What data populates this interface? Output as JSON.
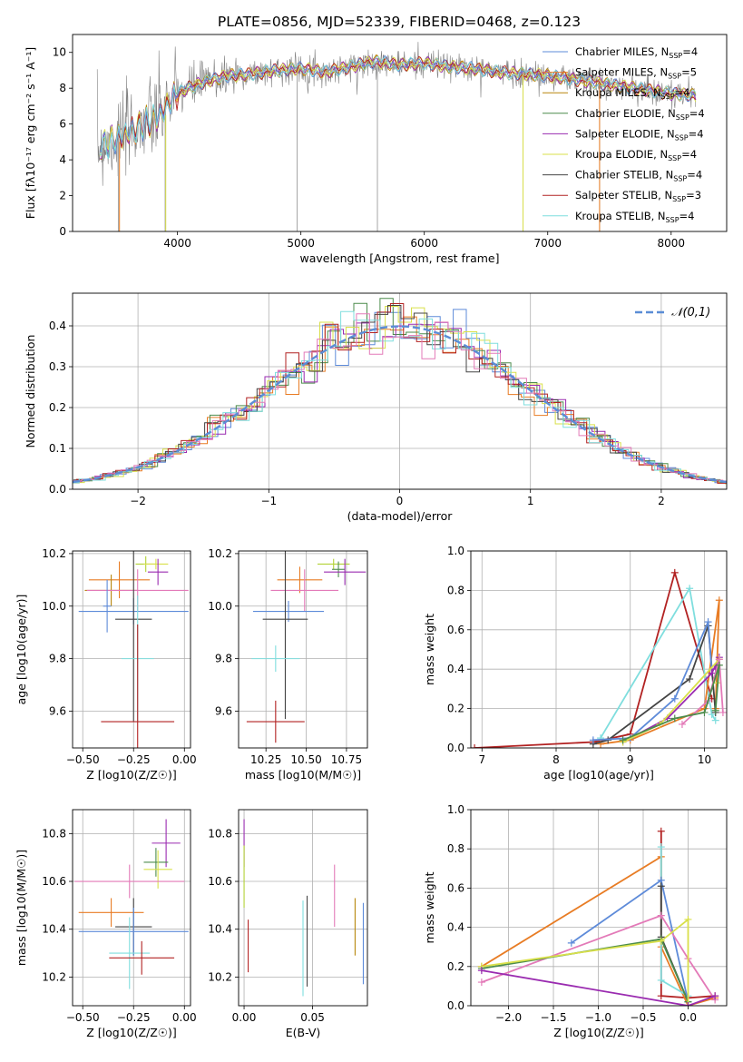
{
  "figure_title": "PLATE=0856, MJD=52339, FIBERID=0468, z=0.123",
  "colors": {
    "chabrier_miles": "#5e8bd9",
    "salpeter_miles": "#e87c24",
    "kroupa_miles": "#b8860b",
    "chabrier_elodie": "#4c8c4c",
    "salpeter_elodie": "#9a2bb0",
    "kroupa_elodie": "#d9e04a",
    "chabrier_stelib": "#444444",
    "salpeter_stelib": "#b22222",
    "kroupa_stelib": "#7fdede",
    "pink": "#e37ab8",
    "lime": "#b2d235",
    "data_gray": "#808080",
    "normal_curve": "#5b8dd6"
  },
  "chart_data": [
    {
      "id": "spectrum",
      "type": "line",
      "title": "PLATE=0856, MJD=52339, FIBERID=0468, z=0.123",
      "xlabel": "wavelength [Angstrom, rest frame]",
      "ylabel": "Flux [fλ10⁻¹⁷ erg cm⁻² s⁻¹ A⁻¹]",
      "xlim": [
        3150,
        8450
      ],
      "ylim": [
        0,
        11
      ],
      "xticks": [
        "4000",
        "5000",
        "6000",
        "7000",
        "8000"
      ],
      "yticks": [
        "0",
        "2",
        "4",
        "6",
        "8",
        "10"
      ],
      "legend_position": "upper-right",
      "legend": [
        {
          "label": "Chabrier MILES, NSSP=4",
          "color_key": "chabrier_miles"
        },
        {
          "label": "Salpeter MILES, NSSP=5",
          "color_key": "salpeter_miles"
        },
        {
          "label": "Kroupa MILES, NSSP=4",
          "color_key": "kroupa_miles"
        },
        {
          "label": "Chabrier ELODIE, NSSP=4",
          "color_key": "chabrier_elodie"
        },
        {
          "label": "Salpeter ELODIE, NSSP=4",
          "color_key": "salpeter_elodie"
        },
        {
          "label": "Kroupa ELODIE, NSSP=4",
          "color_key": "kroupa_elodie"
        },
        {
          "label": "Chabrier STELIB, NSSP=4",
          "color_key": "chabrier_stelib"
        },
        {
          "label": "Salpeter STELIB, NSSP=3",
          "color_key": "salpeter_stelib"
        },
        {
          "label": "Kroupa STELIB, NSSP=4",
          "color_key": "kroupa_stelib"
        }
      ],
      "continuum": [
        [
          3350,
          4.7
        ],
        [
          3450,
          5.0
        ],
        [
          3550,
          5.3
        ],
        [
          3650,
          5.7
        ],
        [
          3750,
          6.1
        ],
        [
          3850,
          6.4
        ],
        [
          3950,
          7.4
        ],
        [
          4050,
          7.9
        ],
        [
          4200,
          8.3
        ],
        [
          4400,
          8.7
        ],
        [
          4600,
          8.8
        ],
        [
          4800,
          9.0
        ],
        [
          5000,
          9.1
        ],
        [
          5200,
          8.9
        ],
        [
          5400,
          9.2
        ],
        [
          5600,
          9.5
        ],
        [
          5800,
          9.3
        ],
        [
          6000,
          9.4
        ],
        [
          6200,
          9.2
        ],
        [
          6400,
          9.1
        ],
        [
          6600,
          8.9
        ],
        [
          6800,
          8.8
        ],
        [
          7000,
          8.7
        ],
        [
          7200,
          8.5
        ],
        [
          7400,
          8.3
        ],
        [
          7600,
          8.1
        ],
        [
          7800,
          7.9
        ],
        [
          8000,
          7.7
        ],
        [
          8200,
          7.6
        ]
      ],
      "spikes_down": [
        4970,
        5620,
        6800,
        7420,
        3900,
        3520
      ],
      "noise_note": ""
    },
    {
      "id": "residuals",
      "type": "histogram",
      "xlabel": "(data-model)/error",
      "ylabel": "Normed distribution",
      "xlim": [
        -2.5,
        2.5
      ],
      "ylim": [
        0,
        0.48
      ],
      "xticks": [
        "-2",
        "-1",
        "0",
        "1",
        "2"
      ],
      "yticks": [
        "0.0",
        "0.1",
        "0.2",
        "0.3",
        "0.4"
      ],
      "bin_width": 0.1,
      "legend_label": "𝒩(0,1)",
      "legend_position": "upper-right",
      "grid": true
    },
    {
      "id": "age_vs_Z",
      "type": "errorbar",
      "xlabel": "Z [log10(Z/Z☉)]",
      "ylabel": "age  [log10(age/yr)]",
      "xlim": [
        -0.55,
        0.03
      ],
      "ylim": [
        9.46,
        10.21
      ],
      "xticks": [
        "-0.50",
        "-0.25",
        "0.00"
      ],
      "xtick_values": [
        -0.5,
        -0.25,
        0.0
      ],
      "yticks": [
        "9.6",
        "9.8",
        "10.0",
        "10.2"
      ],
      "ytick_values": [
        9.6,
        9.8,
        10.0,
        10.2
      ],
      "points": [
        {
          "x": -0.19,
          "y": 10.16,
          "xerr": 0.05,
          "yerr": 0.03,
          "c": "lime"
        },
        {
          "x": -0.14,
          "y": 10.16,
          "xerr": 0.06,
          "yerr": 0.02,
          "c": "kroupa_elodie"
        },
        {
          "x": -0.13,
          "y": 10.13,
          "xerr": 0.05,
          "yerr": 0.05,
          "c": "salpeter_elodie"
        },
        {
          "x": -0.32,
          "y": 10.1,
          "xerr": 0.15,
          "yerr": 0.07,
          "c": "salpeter_miles"
        },
        {
          "x": -0.36,
          "y": 10.06,
          "xerr": 0.13,
          "yerr": 0.06,
          "c": "kroupa_miles"
        },
        {
          "x": -0.23,
          "y": 10.06,
          "xerr": 0.25,
          "yerr": 0.08,
          "c": "pink"
        },
        {
          "x": -0.38,
          "y": 10.0,
          "xerr": 0.02,
          "yerr": 0.1,
          "c": "chabrier_miles"
        },
        {
          "x": -0.25,
          "y": 9.98,
          "xerr": 0.27,
          "yerr": 0.05,
          "c": "chabrier_miles"
        },
        {
          "x": -0.25,
          "y": 9.95,
          "xerr": 0.09,
          "yerr": 0.39,
          "c": "chabrier_stelib"
        },
        {
          "x": -0.23,
          "y": 9.8,
          "xerr": 0.08,
          "yerr": 0.24,
          "c": "kroupa_stelib"
        },
        {
          "x": -0.23,
          "y": 9.56,
          "xerr": 0.18,
          "yerr": 0.37,
          "c": "salpeter_stelib"
        }
      ]
    },
    {
      "id": "age_vs_mass",
      "type": "errorbar",
      "xlabel": "mass [log10(M/M☉)]",
      "ylabel": "",
      "xlim": [
        10.08,
        10.88
      ],
      "ylim": [
        9.46,
        10.21
      ],
      "xticks": [
        "10.25",
        "10.50",
        "10.75"
      ],
      "xtick_values": [
        10.25,
        10.5,
        10.75
      ],
      "yticks": [
        "9.6",
        "9.8",
        "10.0",
        "10.2"
      ],
      "ytick_values": [
        9.6,
        9.8,
        10.0,
        10.2
      ],
      "points": [
        {
          "x": 10.67,
          "y": 10.16,
          "xerr": 0.1,
          "yerr": 0.02,
          "c": "lime"
        },
        {
          "x": 10.7,
          "y": 10.14,
          "xerr": 0.04,
          "yerr": 0.03,
          "c": "chabrier_elodie"
        },
        {
          "x": 10.74,
          "y": 10.13,
          "xerr": 0.13,
          "yerr": 0.05,
          "c": "salpeter_elodie"
        },
        {
          "x": 10.46,
          "y": 10.1,
          "xerr": 0.14,
          "yerr": 0.05,
          "c": "salpeter_miles"
        },
        {
          "x": 10.49,
          "y": 10.06,
          "xerr": 0.21,
          "yerr": 0.08,
          "c": "pink"
        },
        {
          "x": 10.39,
          "y": 9.98,
          "xerr": 0.22,
          "yerr": 0.04,
          "c": "chabrier_miles"
        },
        {
          "x": 10.37,
          "y": 9.95,
          "xerr": 0.14,
          "yerr": 0.38,
          "c": "chabrier_stelib"
        },
        {
          "x": 10.31,
          "y": 9.8,
          "xerr": 0.15,
          "yerr": 0.05,
          "c": "kroupa_stelib"
        },
        {
          "x": 10.31,
          "y": 9.56,
          "xerr": 0.18,
          "yerr": 0.08,
          "c": "salpeter_stelib"
        }
      ]
    },
    {
      "id": "massweight_vs_age",
      "type": "line",
      "xlabel": "age  [log10(age/yr)]",
      "ylabel": "mass weight",
      "xlim": [
        6.85,
        10.3
      ],
      "ylim": [
        0,
        1
      ],
      "xticks": [
        "7",
        "8",
        "9",
        "10"
      ],
      "xtick_values": [
        7,
        8,
        9,
        10
      ],
      "yticks": [
        "0.0",
        "0.2",
        "0.4",
        "0.6",
        "0.8",
        "1.0"
      ],
      "ytick_values": [
        0,
        0.2,
        0.4,
        0.6,
        0.8,
        1.0
      ],
      "series": [
        {
          "c": "salpeter_stelib",
          "x": [
            6.9,
            8.5,
            9.0,
            9.6,
            10.1
          ],
          "y": [
            0.0,
            0.03,
            0.07,
            0.89,
            0.25
          ]
        },
        {
          "c": "kroupa_stelib",
          "x": [
            8.6,
            9.8,
            10.1,
            10.15
          ],
          "y": [
            0.05,
            0.81,
            0.17,
            0.14
          ]
        },
        {
          "c": "salpeter_miles",
          "x": [
            8.6,
            9.0,
            10.0,
            10.2,
            10.15
          ],
          "y": [
            0.02,
            0.04,
            0.2,
            0.75,
            0.2
          ]
        },
        {
          "c": "chabrier_stelib",
          "x": [
            8.5,
            8.7,
            9.8,
            10.05,
            10.15
          ],
          "y": [
            0.02,
            0.04,
            0.35,
            0.62,
            0.18
          ]
        },
        {
          "c": "chabrier_miles",
          "x": [
            8.5,
            9.0,
            9.6,
            10.05,
            10.1
          ],
          "y": [
            0.04,
            0.05,
            0.25,
            0.64,
            0.38
          ]
        },
        {
          "c": "salpeter_elodie",
          "x": [
            8.9,
            9.5,
            10.1,
            10.2,
            10.15
          ],
          "y": [
            0.03,
            0.15,
            0.38,
            0.46,
            0.4
          ]
        },
        {
          "c": "kroupa_elodie",
          "x": [
            8.9,
            9.4,
            10.2,
            10.18
          ],
          "y": [
            0.03,
            0.12,
            0.45,
            0.33
          ]
        },
        {
          "c": "pink",
          "x": [
            9.7,
            10.05,
            10.2,
            10.25
          ],
          "y": [
            0.12,
            0.24,
            0.45,
            0.18
          ]
        },
        {
          "c": "chabrier_elodie",
          "x": [
            8.9,
            9.6,
            10.0,
            10.2,
            10.15
          ],
          "y": [
            0.04,
            0.15,
            0.18,
            0.42,
            0.19
          ]
        }
      ]
    },
    {
      "id": "mass_vs_Z",
      "type": "errorbar",
      "xlabel": "Z [log10(Z/Z☉)]",
      "ylabel": "mass [log10(M/M☉)]",
      "xlim": [
        -0.55,
        0.03
      ],
      "ylim": [
        10.08,
        10.9
      ],
      "xticks": [
        "-0.50",
        "-0.25",
        "0.00"
      ],
      "xtick_values": [
        -0.5,
        -0.25,
        0.0
      ],
      "yticks": [
        "10.2",
        "10.4",
        "10.6",
        "10.8"
      ],
      "ytick_values": [
        10.2,
        10.4,
        10.6,
        10.8
      ],
      "points": [
        {
          "x": -0.09,
          "y": 10.76,
          "xerr": 0.07,
          "yerr": 0.1,
          "c": "salpeter_elodie"
        },
        {
          "x": -0.14,
          "y": 10.68,
          "xerr": 0.06,
          "yerr": 0.06,
          "c": "chabrier_elodie"
        },
        {
          "x": -0.13,
          "y": 10.65,
          "xerr": 0.07,
          "yerr": 0.08,
          "c": "kroupa_elodie"
        },
        {
          "x": -0.27,
          "y": 10.6,
          "xerr": 0.27,
          "yerr": 0.07,
          "c": "pink"
        },
        {
          "x": -0.36,
          "y": 10.47,
          "xerr": 0.16,
          "yerr": 0.06,
          "c": "salpeter_miles"
        },
        {
          "x": -0.25,
          "y": 10.41,
          "xerr": 0.09,
          "yerr": 0.12,
          "c": "chabrier_stelib"
        },
        {
          "x": -0.25,
          "y": 10.39,
          "xerr": 0.27,
          "yerr": 0.1,
          "c": "chabrier_miles"
        },
        {
          "x": -0.27,
          "y": 10.3,
          "xerr": 0.1,
          "yerr": 0.15,
          "c": "kroupa_stelib"
        },
        {
          "x": -0.21,
          "y": 10.28,
          "xerr": 0.16,
          "yerr": 0.07,
          "c": "salpeter_stelib"
        }
      ]
    },
    {
      "id": "mass_vs_ebv",
      "type": "errorbar",
      "xlabel": "E(B-V)",
      "ylabel": "",
      "xlim": [
        -0.004,
        0.09
      ],
      "ylim": [
        10.08,
        10.9
      ],
      "xticks": [
        "0.00",
        "0.05"
      ],
      "xtick_values": [
        0.0,
        0.05
      ],
      "yticks": [
        "10.2",
        "10.4",
        "10.6",
        "10.8"
      ],
      "ytick_values": [
        10.2,
        10.4,
        10.6,
        10.8
      ],
      "points": [
        {
          "x": 0.0,
          "y": 10.76,
          "xerr": 0,
          "yerr": 0.1,
          "c": "salpeter_elodie"
        },
        {
          "x": 0.0,
          "y": 10.62,
          "xerr": 0,
          "yerr": 0.13,
          "c": "lime"
        },
        {
          "x": 0.003,
          "y": 10.33,
          "xerr": 0,
          "yerr": 0.11,
          "c": "salpeter_stelib"
        },
        {
          "x": 0.043,
          "y": 10.32,
          "xerr": 0,
          "yerr": 0.2,
          "c": "kroupa_stelib"
        },
        {
          "x": 0.046,
          "y": 10.35,
          "xerr": 0,
          "yerr": 0.19,
          "c": "chabrier_stelib"
        },
        {
          "x": 0.066,
          "y": 10.54,
          "xerr": 0,
          "yerr": 0.13,
          "c": "pink"
        },
        {
          "x": 0.081,
          "y": 10.41,
          "xerr": 0,
          "yerr": 0.12,
          "c": "kroupa_miles"
        },
        {
          "x": 0.087,
          "y": 10.34,
          "xerr": 0,
          "yerr": 0.17,
          "c": "chabrier_miles"
        }
      ]
    },
    {
      "id": "massweight_vs_Z",
      "type": "line",
      "xlabel": "Z [log10(Z/Z☉)]",
      "ylabel": "mass weight",
      "xlim": [
        -2.42,
        0.43
      ],
      "ylim": [
        0,
        1
      ],
      "xticks": [
        "-2.0",
        "-1.5",
        "-1.0",
        "-0.5",
        "0.0"
      ],
      "xtick_values": [
        -2.0,
        -1.5,
        -1.0,
        -0.5,
        0.0
      ],
      "yticks": [
        "0.0",
        "0.2",
        "0.4",
        "0.6",
        "0.8",
        "1.0"
      ],
      "ytick_values": [
        0,
        0.2,
        0.4,
        0.6,
        0.8,
        1.0
      ],
      "series": [
        {
          "c": "salpeter_stelib",
          "x": [
            -0.3,
            -0.3,
            0.0,
            0.3
          ],
          "y": [
            0.89,
            0.05,
            0.04,
            0.05
          ]
        },
        {
          "c": "salpeter_miles",
          "x": [
            -2.3,
            -0.3,
            -0.3,
            0.0,
            0.3
          ],
          "y": [
            0.2,
            0.76,
            0.3,
            0.0,
            0.04
          ]
        },
        {
          "c": "kroupa_stelib",
          "x": [
            -0.3,
            -0.3,
            0.0
          ],
          "y": [
            0.81,
            0.13,
            0.05
          ]
        },
        {
          "c": "chabrier_miles",
          "x": [
            -1.3,
            -0.3,
            0.0
          ],
          "y": [
            0.32,
            0.64,
            0.02
          ]
        },
        {
          "c": "chabrier_stelib",
          "x": [
            -0.3,
            -0.3,
            0.0
          ],
          "y": [
            0.61,
            0.35,
            0.02
          ]
        },
        {
          "c": "pink",
          "x": [
            -2.3,
            -0.3,
            0.0,
            0.3
          ],
          "y": [
            0.12,
            0.46,
            0.24,
            0.03
          ]
        },
        {
          "c": "chabrier_elodie",
          "x": [
            -2.3,
            -0.3,
            0.0
          ],
          "y": [
            0.19,
            0.34,
            0.02
          ]
        },
        {
          "c": "kroupa_elodie",
          "x": [
            -2.3,
            -0.3,
            0.0,
            0.0
          ],
          "y": [
            0.2,
            0.33,
            0.44,
            0.0
          ]
        },
        {
          "c": "salpeter_elodie",
          "x": [
            -2.3,
            0.0,
            0.3
          ],
          "y": [
            0.18,
            0.0,
            0.05
          ]
        }
      ]
    }
  ]
}
